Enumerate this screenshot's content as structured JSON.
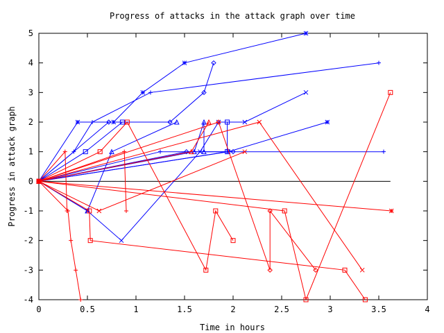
{
  "chart_data": {
    "type": "line",
    "title": "Progress of attacks in the attack graph over time",
    "xlabel": "Time in hours",
    "ylabel": "Progress in attack graph",
    "xlim": [
      0,
      4
    ],
    "ylim": [
      -4,
      5
    ],
    "xticks": [
      "0",
      "0.5",
      "1",
      "1.5",
      "2",
      "2.5",
      "3",
      "3.5",
      "4"
    ],
    "yticks": [
      "-4",
      "-3",
      "-2",
      "-1",
      "0",
      "1",
      "2",
      "3",
      "4",
      "5"
    ],
    "grid": false,
    "legend": "none",
    "colors": {
      "blue_series": "#0000ff",
      "red_series": "#ff0000",
      "baseline": "#000000"
    },
    "baseline": {
      "x": [
        0,
        3.62
      ],
      "y": [
        0,
        0
      ]
    },
    "series": [
      {
        "color": "blue",
        "marker": "star",
        "points": [
          [
            0,
            0
          ],
          [
            0.4,
            2
          ],
          [
            0.77,
            2
          ],
          [
            1.07,
            3
          ],
          [
            1.5,
            4
          ],
          [
            2.75,
            5
          ]
        ]
      },
      {
        "color": "blue",
        "marker": "plus",
        "points": [
          [
            0,
            0
          ],
          [
            0.36,
            1
          ],
          [
            0.55,
            2
          ],
          [
            1.15,
            3
          ],
          [
            3.5,
            4
          ]
        ]
      },
      {
        "color": "blue",
        "marker": "diamond",
        "points": [
          [
            0,
            0
          ],
          [
            0.72,
            2
          ],
          [
            1.35,
            2
          ],
          [
            1.7,
            3
          ],
          [
            1.8,
            4
          ]
        ]
      },
      {
        "color": "blue",
        "marker": "triangle",
        "points": [
          [
            0,
            0
          ],
          [
            0.5,
            -1
          ],
          [
            0.75,
            1
          ],
          [
            1.42,
            2
          ]
        ]
      },
      {
        "color": "blue",
        "marker": "square",
        "points": [
          [
            0,
            0
          ],
          [
            0.48,
            1
          ],
          [
            0.86,
            2
          ]
        ]
      },
      {
        "color": "blue",
        "marker": "x",
        "points": [
          [
            0,
            0
          ],
          [
            0.5,
            -1
          ],
          [
            0.85,
            -2
          ],
          [
            1.66,
            1
          ],
          [
            1.85,
            2
          ],
          [
            2.12,
            2
          ],
          [
            2.75,
            3
          ]
        ]
      },
      {
        "color": "blue",
        "marker": "star",
        "points": [
          [
            0,
            0
          ],
          [
            1.95,
            1
          ],
          [
            2.97,
            2
          ]
        ]
      },
      {
        "color": "blue",
        "marker": "square",
        "points": [
          [
            0,
            0
          ],
          [
            1.94,
            1
          ],
          [
            1.94,
            2
          ]
        ]
      },
      {
        "color": "blue",
        "marker": "plus",
        "points": [
          [
            0,
            0
          ],
          [
            1.25,
            1
          ],
          [
            3.55,
            1
          ]
        ]
      },
      {
        "color": "blue",
        "marker": "triangle",
        "points": [
          [
            0,
            0
          ],
          [
            1.6,
            1
          ],
          [
            1.7,
            2
          ],
          [
            1.7,
            1
          ]
        ]
      },
      {
        "color": "blue",
        "marker": "diamond",
        "points": [
          [
            0,
            0
          ],
          [
            1.52,
            1
          ],
          [
            2.0,
            1
          ]
        ]
      },
      {
        "color": "red",
        "marker": "plus",
        "points": [
          [
            0,
            0
          ],
          [
            0.3,
            -1
          ],
          [
            0.33,
            -2
          ],
          [
            0.38,
            -3
          ],
          [
            0.43,
            -4
          ]
        ]
      },
      {
        "color": "red",
        "marker": "plus",
        "points": [
          [
            0,
            0
          ],
          [
            0.27,
            1
          ],
          [
            0.29,
            -1
          ]
        ]
      },
      {
        "color": "red",
        "marker": "square",
        "points": [
          [
            0,
            0
          ],
          [
            0.63,
            1
          ],
          [
            0.91,
            2
          ],
          [
            1.72,
            -3
          ],
          [
            1.82,
            -1
          ],
          [
            2.0,
            -2
          ]
        ]
      },
      {
        "color": "red",
        "marker": "star",
        "points": [
          [
            0,
            0
          ],
          [
            3.63,
            -1
          ]
        ]
      },
      {
        "color": "red",
        "marker": "square",
        "points": [
          [
            0,
            0
          ],
          [
            0.52,
            -1
          ],
          [
            0.53,
            -2
          ],
          [
            3.15,
            -3
          ],
          [
            3.36,
            -4
          ]
        ]
      },
      {
        "color": "red",
        "marker": "x",
        "points": [
          [
            0,
            0
          ],
          [
            2.27,
            2
          ],
          [
            3.33,
            -3
          ]
        ]
      },
      {
        "color": "red",
        "marker": "diamond",
        "points": [
          [
            0,
            0
          ],
          [
            1.85,
            2
          ],
          [
            2.38,
            -3
          ],
          [
            2.38,
            -1
          ],
          [
            2.85,
            -3
          ]
        ]
      },
      {
        "color": "red",
        "marker": "triangle",
        "points": [
          [
            0,
            0
          ],
          [
            1.57,
            1
          ],
          [
            1.75,
            2
          ]
        ]
      },
      {
        "color": "red",
        "marker": "plus",
        "points": [
          [
            0,
            0
          ],
          [
            0.88,
            1
          ],
          [
            0.9,
            -1
          ]
        ]
      },
      {
        "color": "red",
        "marker": "square",
        "points": [
          [
            0,
            0
          ],
          [
            2.53,
            -1
          ],
          [
            2.75,
            -4
          ],
          [
            3.62,
            3
          ]
        ]
      },
      {
        "color": "red",
        "marker": "x",
        "points": [
          [
            0,
            0
          ],
          [
            0.62,
            -1
          ],
          [
            2.12,
            1
          ]
        ]
      }
    ]
  }
}
